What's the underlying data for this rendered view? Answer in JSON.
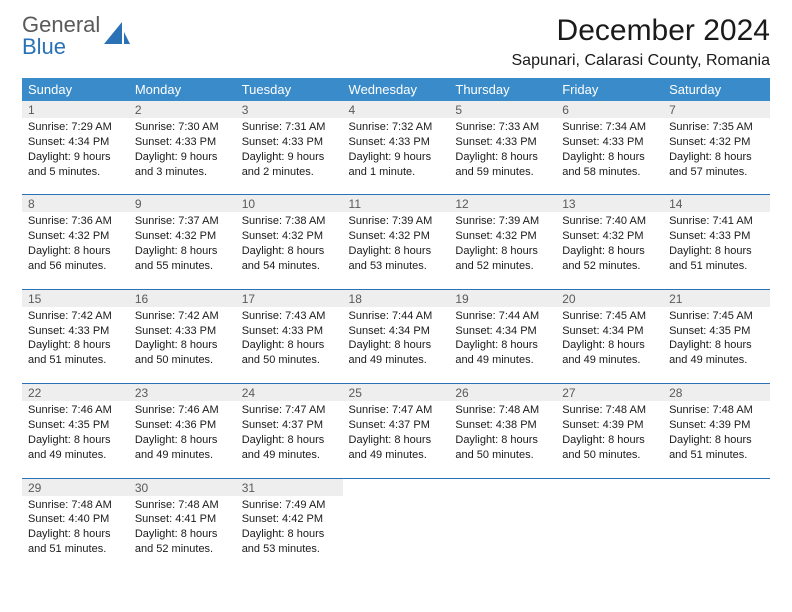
{
  "logo": {
    "line1": "General",
    "line2": "Blue"
  },
  "title": "December 2024",
  "location": "Sapunari, Calarasi County, Romania",
  "colors": {
    "header_bg": "#3a8bc9",
    "header_fg": "#ffffff",
    "daynum_bg": "#eeeeee",
    "rule": "#2a72b5",
    "logo_gray": "#5a5a5a",
    "logo_blue": "#2a72b5"
  },
  "day_headers": [
    "Sunday",
    "Monday",
    "Tuesday",
    "Wednesday",
    "Thursday",
    "Friday",
    "Saturday"
  ],
  "weeks": [
    [
      {
        "n": "1",
        "sr": "Sunrise: 7:29 AM",
        "ss": "Sunset: 4:34 PM",
        "dl": "Daylight: 9 hours and 5 minutes."
      },
      {
        "n": "2",
        "sr": "Sunrise: 7:30 AM",
        "ss": "Sunset: 4:33 PM",
        "dl": "Daylight: 9 hours and 3 minutes."
      },
      {
        "n": "3",
        "sr": "Sunrise: 7:31 AM",
        "ss": "Sunset: 4:33 PM",
        "dl": "Daylight: 9 hours and 2 minutes."
      },
      {
        "n": "4",
        "sr": "Sunrise: 7:32 AM",
        "ss": "Sunset: 4:33 PM",
        "dl": "Daylight: 9 hours and 1 minute."
      },
      {
        "n": "5",
        "sr": "Sunrise: 7:33 AM",
        "ss": "Sunset: 4:33 PM",
        "dl": "Daylight: 8 hours and 59 minutes."
      },
      {
        "n": "6",
        "sr": "Sunrise: 7:34 AM",
        "ss": "Sunset: 4:33 PM",
        "dl": "Daylight: 8 hours and 58 minutes."
      },
      {
        "n": "7",
        "sr": "Sunrise: 7:35 AM",
        "ss": "Sunset: 4:32 PM",
        "dl": "Daylight: 8 hours and 57 minutes."
      }
    ],
    [
      {
        "n": "8",
        "sr": "Sunrise: 7:36 AM",
        "ss": "Sunset: 4:32 PM",
        "dl": "Daylight: 8 hours and 56 minutes."
      },
      {
        "n": "9",
        "sr": "Sunrise: 7:37 AM",
        "ss": "Sunset: 4:32 PM",
        "dl": "Daylight: 8 hours and 55 minutes."
      },
      {
        "n": "10",
        "sr": "Sunrise: 7:38 AM",
        "ss": "Sunset: 4:32 PM",
        "dl": "Daylight: 8 hours and 54 minutes."
      },
      {
        "n": "11",
        "sr": "Sunrise: 7:39 AM",
        "ss": "Sunset: 4:32 PM",
        "dl": "Daylight: 8 hours and 53 minutes."
      },
      {
        "n": "12",
        "sr": "Sunrise: 7:39 AM",
        "ss": "Sunset: 4:32 PM",
        "dl": "Daylight: 8 hours and 52 minutes."
      },
      {
        "n": "13",
        "sr": "Sunrise: 7:40 AM",
        "ss": "Sunset: 4:32 PM",
        "dl": "Daylight: 8 hours and 52 minutes."
      },
      {
        "n": "14",
        "sr": "Sunrise: 7:41 AM",
        "ss": "Sunset: 4:33 PM",
        "dl": "Daylight: 8 hours and 51 minutes."
      }
    ],
    [
      {
        "n": "15",
        "sr": "Sunrise: 7:42 AM",
        "ss": "Sunset: 4:33 PM",
        "dl": "Daylight: 8 hours and 51 minutes."
      },
      {
        "n": "16",
        "sr": "Sunrise: 7:42 AM",
        "ss": "Sunset: 4:33 PM",
        "dl": "Daylight: 8 hours and 50 minutes."
      },
      {
        "n": "17",
        "sr": "Sunrise: 7:43 AM",
        "ss": "Sunset: 4:33 PM",
        "dl": "Daylight: 8 hours and 50 minutes."
      },
      {
        "n": "18",
        "sr": "Sunrise: 7:44 AM",
        "ss": "Sunset: 4:34 PM",
        "dl": "Daylight: 8 hours and 49 minutes."
      },
      {
        "n": "19",
        "sr": "Sunrise: 7:44 AM",
        "ss": "Sunset: 4:34 PM",
        "dl": "Daylight: 8 hours and 49 minutes."
      },
      {
        "n": "20",
        "sr": "Sunrise: 7:45 AM",
        "ss": "Sunset: 4:34 PM",
        "dl": "Daylight: 8 hours and 49 minutes."
      },
      {
        "n": "21",
        "sr": "Sunrise: 7:45 AM",
        "ss": "Sunset: 4:35 PM",
        "dl": "Daylight: 8 hours and 49 minutes."
      }
    ],
    [
      {
        "n": "22",
        "sr": "Sunrise: 7:46 AM",
        "ss": "Sunset: 4:35 PM",
        "dl": "Daylight: 8 hours and 49 minutes."
      },
      {
        "n": "23",
        "sr": "Sunrise: 7:46 AM",
        "ss": "Sunset: 4:36 PM",
        "dl": "Daylight: 8 hours and 49 minutes."
      },
      {
        "n": "24",
        "sr": "Sunrise: 7:47 AM",
        "ss": "Sunset: 4:37 PM",
        "dl": "Daylight: 8 hours and 49 minutes."
      },
      {
        "n": "25",
        "sr": "Sunrise: 7:47 AM",
        "ss": "Sunset: 4:37 PM",
        "dl": "Daylight: 8 hours and 49 minutes."
      },
      {
        "n": "26",
        "sr": "Sunrise: 7:48 AM",
        "ss": "Sunset: 4:38 PM",
        "dl": "Daylight: 8 hours and 50 minutes."
      },
      {
        "n": "27",
        "sr": "Sunrise: 7:48 AM",
        "ss": "Sunset: 4:39 PM",
        "dl": "Daylight: 8 hours and 50 minutes."
      },
      {
        "n": "28",
        "sr": "Sunrise: 7:48 AM",
        "ss": "Sunset: 4:39 PM",
        "dl": "Daylight: 8 hours and 51 minutes."
      }
    ],
    [
      {
        "n": "29",
        "sr": "Sunrise: 7:48 AM",
        "ss": "Sunset: 4:40 PM",
        "dl": "Daylight: 8 hours and 51 minutes."
      },
      {
        "n": "30",
        "sr": "Sunrise: 7:48 AM",
        "ss": "Sunset: 4:41 PM",
        "dl": "Daylight: 8 hours and 52 minutes."
      },
      {
        "n": "31",
        "sr": "Sunrise: 7:49 AM",
        "ss": "Sunset: 4:42 PM",
        "dl": "Daylight: 8 hours and 53 minutes."
      },
      null,
      null,
      null,
      null
    ]
  ]
}
